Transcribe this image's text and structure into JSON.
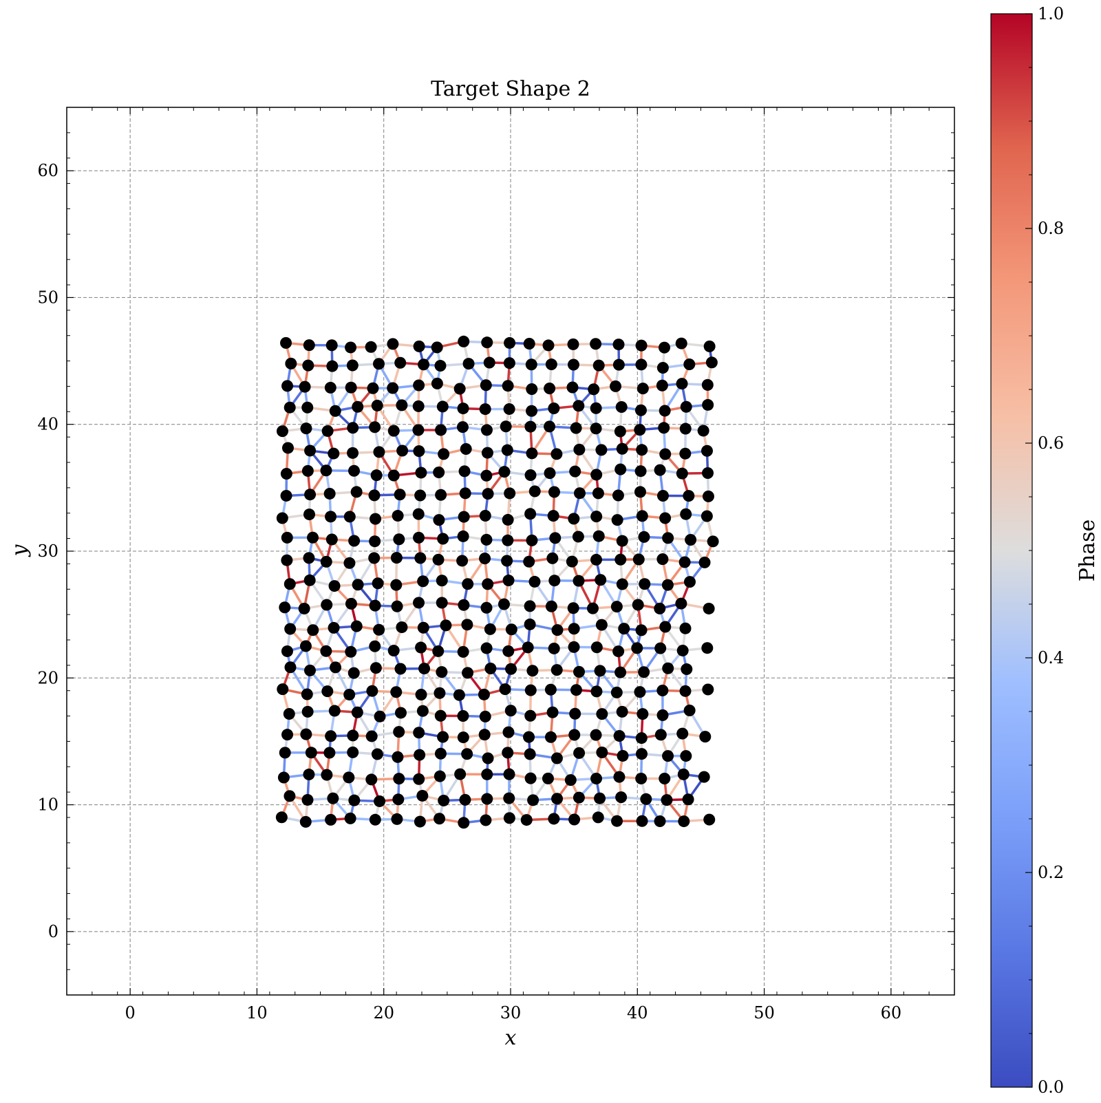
{
  "chart_data": {
    "type": "scatter",
    "title": "Target Shape 2",
    "xlabel": "x",
    "ylabel": "y",
    "xlim": [
      -5,
      65
    ],
    "ylim": [
      -5,
      65
    ],
    "xticks": [
      0,
      10,
      20,
      30,
      40,
      50,
      60
    ],
    "yticks": [
      0,
      10,
      20,
      30,
      40,
      50,
      60
    ],
    "grid": true,
    "points": {
      "description": "triangular lattice of nodes (black markers) connected by edges colored by phase",
      "x_range": [
        12,
        47
      ],
      "y_range": [
        8.4,
        46.6
      ],
      "rows_y": [
        8.8,
        10.5,
        12.2,
        13.9,
        15.5,
        17.2,
        18.9,
        20.6,
        22.3,
        24.0,
        25.7,
        27.5,
        29.3,
        31.0,
        32.7,
        34.5,
        36.2,
        37.9,
        39.6,
        41.3,
        43.0,
        44.7,
        46.3
      ],
      "x_spacing": 1.75,
      "edge_color_metric": "phase"
    },
    "colorbar": {
      "label": "Phase",
      "colormap": "coolwarm",
      "range": [
        0.0,
        1.0
      ],
      "tick_labels": [
        "0.0",
        "0.2",
        "0.4",
        "0.6",
        "0.8",
        "1.0"
      ],
      "tick_values": [
        0.0,
        0.2,
        0.4,
        0.6,
        0.8,
        1.0
      ]
    },
    "colors": {
      "node": "#000000",
      "low": "#3b4cc0",
      "mid": "#dddddd",
      "high": "#b40426"
    }
  }
}
